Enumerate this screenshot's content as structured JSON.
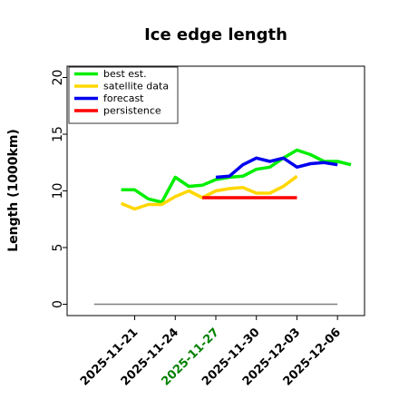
{
  "chart_data": {
    "type": "line",
    "title": "Ice edge length",
    "xlabel": "",
    "ylabel": "Length (1000km)",
    "ylim": [
      -1,
      21
    ],
    "yticks": [
      0,
      5,
      10,
      15,
      20
    ],
    "xlim": [
      "2025-11-16",
      "2025-12-08"
    ],
    "xticks": [
      {
        "date": "2025-11-21",
        "label": "2025-11-21",
        "color": "#000000"
      },
      {
        "date": "2025-11-24",
        "label": "2025-11-24",
        "color": "#000000"
      },
      {
        "date": "2025-11-27",
        "label": "2025-11-27",
        "color": "#008000"
      },
      {
        "date": "2025-11-30",
        "label": "2025-11-30",
        "color": "#000000"
      },
      {
        "date": "2025-12-03",
        "label": "2025-12-03",
        "color": "#000000"
      },
      {
        "date": "2025-12-06",
        "label": "2025-12-06",
        "color": "#000000"
      }
    ],
    "legend_position": "top-left",
    "series": [
      {
        "name": "best est.",
        "color": "#00ee00",
        "points": [
          [
            "2025-11-20",
            10.1
          ],
          [
            "2025-11-21",
            10.1
          ],
          [
            "2025-11-22",
            9.3
          ],
          [
            "2025-11-23",
            9.0
          ],
          [
            "2025-11-24",
            11.2
          ],
          [
            "2025-11-25",
            10.4
          ],
          [
            "2025-11-26",
            10.5
          ],
          [
            "2025-11-27",
            11.0
          ],
          [
            "2025-11-28",
            11.2
          ],
          [
            "2025-11-29",
            11.3
          ],
          [
            "2025-11-30",
            11.9
          ],
          [
            "2025-12-01",
            12.1
          ],
          [
            "2025-12-02",
            12.9
          ],
          [
            "2025-12-03",
            13.6
          ],
          [
            "2025-12-04",
            13.2
          ],
          [
            "2025-12-05",
            12.6
          ],
          [
            "2025-12-06",
            12.6
          ],
          [
            "2025-12-07",
            12.3
          ]
        ]
      },
      {
        "name": "satellite data",
        "color": "#ffd700",
        "points": [
          [
            "2025-11-20",
            8.9
          ],
          [
            "2025-11-21",
            8.4
          ],
          [
            "2025-11-22",
            8.8
          ],
          [
            "2025-11-23",
            8.8
          ],
          [
            "2025-11-24",
            9.5
          ],
          [
            "2025-11-25",
            10.0
          ],
          [
            "2025-11-26",
            9.4
          ],
          [
            "2025-11-27",
            10.0
          ],
          [
            "2025-11-28",
            10.2
          ],
          [
            "2025-11-29",
            10.3
          ],
          [
            "2025-11-30",
            9.8
          ],
          [
            "2025-12-01",
            9.8
          ],
          [
            "2025-12-02",
            10.4
          ],
          [
            "2025-12-03",
            11.3
          ]
        ]
      },
      {
        "name": "forecast",
        "color": "#0000ee",
        "points": [
          [
            "2025-11-27",
            11.2
          ],
          [
            "2025-11-28",
            11.3
          ],
          [
            "2025-11-29",
            12.3
          ],
          [
            "2025-11-30",
            12.9
          ],
          [
            "2025-12-01",
            12.6
          ],
          [
            "2025-12-02",
            12.9
          ],
          [
            "2025-12-03",
            12.1
          ],
          [
            "2025-12-04",
            12.4
          ],
          [
            "2025-12-05",
            12.5
          ],
          [
            "2025-12-06",
            12.3
          ]
        ]
      },
      {
        "name": "persistence",
        "color": "#ff0000",
        "points": [
          [
            "2025-11-26",
            9.4
          ],
          [
            "2025-12-03",
            9.4
          ]
        ]
      },
      {
        "name": "",
        "color": "#808080",
        "points": [
          [
            "2025-11-18",
            0.0
          ],
          [
            "2025-12-06",
            0.0
          ]
        ]
      }
    ]
  }
}
